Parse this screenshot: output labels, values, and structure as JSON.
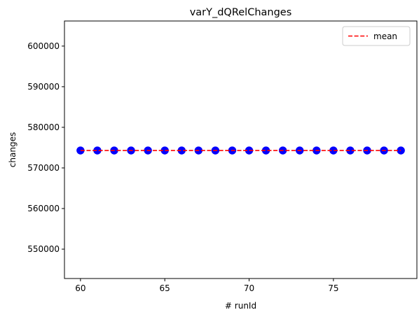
{
  "chart_data": {
    "type": "scatter",
    "title": "varY_dQRelChanges",
    "xlabel": "# runId",
    "ylabel": "changes",
    "xlim": [
      59.05,
      79.95
    ],
    "ylim": [
      542770,
      606180
    ],
    "x_ticks": [
      {
        "value": 60,
        "label": "60"
      },
      {
        "value": 65,
        "label": "65"
      },
      {
        "value": 70,
        "label": "70"
      },
      {
        "value": 75,
        "label": "75"
      }
    ],
    "y_ticks": [
      {
        "value": 550000,
        "label": "550000"
      },
      {
        "value": 560000,
        "label": "560000"
      },
      {
        "value": 570000,
        "label": "570000"
      },
      {
        "value": 580000,
        "label": "580000"
      },
      {
        "value": 590000,
        "label": "590000"
      },
      {
        "value": 600000,
        "label": "600000"
      }
    ],
    "series": [
      {
        "kind": "scatter",
        "color": "#0000ff",
        "edge_color": "#0000ff",
        "x": [
          60,
          61,
          62,
          63,
          64,
          65,
          66,
          67,
          68,
          69,
          70,
          71,
          72,
          73,
          74,
          75,
          76,
          77,
          78,
          79
        ],
        "y": [
          574300,
          574300,
          574300,
          574300,
          574300,
          574300,
          574300,
          574300,
          574300,
          574300,
          574300,
          574300,
          574300,
          574300,
          574300,
          574300,
          574300,
          574300,
          574300,
          574300
        ]
      },
      {
        "name": "mean",
        "kind": "dashed-line",
        "color": "#ff0000",
        "x": [
          60,
          79
        ],
        "y": [
          574300,
          574300
        ]
      }
    ],
    "legend": {
      "position": "top-right",
      "entries": [
        "mean"
      ]
    },
    "grid": false
  }
}
